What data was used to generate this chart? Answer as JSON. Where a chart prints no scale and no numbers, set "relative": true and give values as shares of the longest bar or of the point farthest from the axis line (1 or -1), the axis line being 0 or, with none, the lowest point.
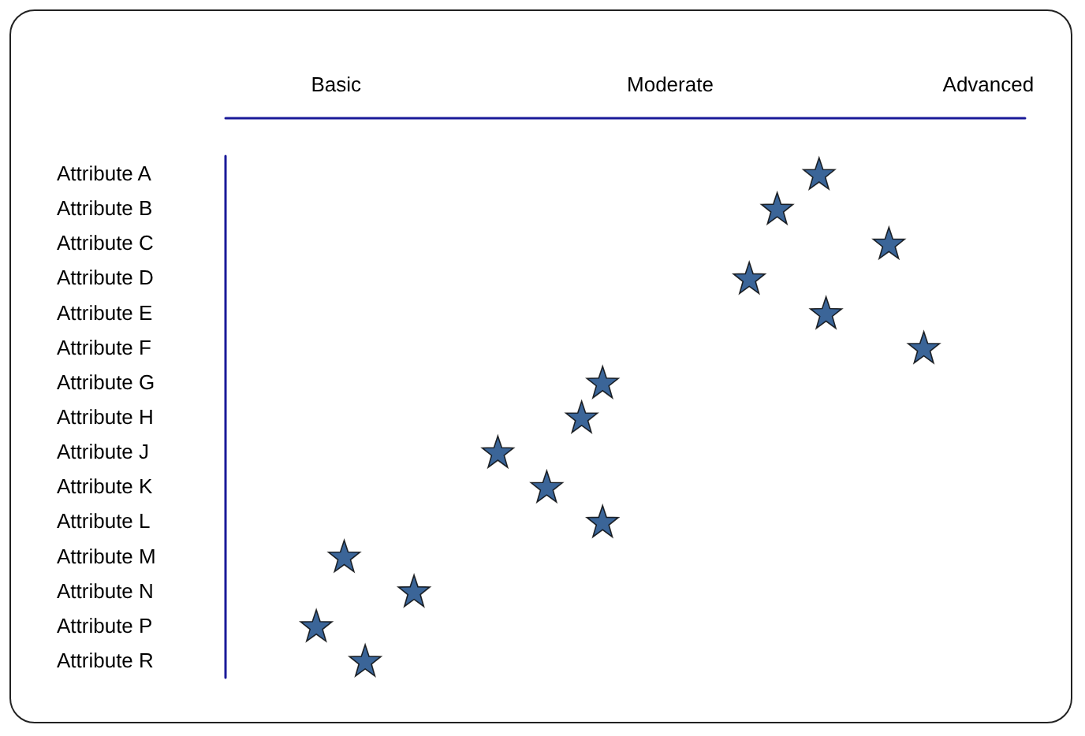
{
  "chart_data": {
    "type": "scatter",
    "categories": [
      "Attribute A",
      "Attribute B",
      "Attribute C",
      "Attribute D",
      "Attribute E",
      "Attribute F",
      "Attribute G",
      "Attribute H",
      "Attribute J",
      "Attribute K",
      "Attribute L",
      "Attribute M",
      "Attribute N",
      "Attribute P",
      "Attribute R"
    ],
    "series": [
      {
        "color": "#0a3f7e",
        "values": [
          0.85,
          0.79,
          0.95,
          0.75,
          0.86,
          1,
          0.54,
          0.51,
          0.39,
          0.46,
          0.54,
          0.17,
          0.27,
          0.13,
          0.2
        ]
      }
    ],
    "relative": true,
    "annotations": [
      "Basic",
      "Moderate",
      "Advanced"
    ],
    "orientation": "horizontal",
    "marker": "star",
    "grid": false
  }
}
